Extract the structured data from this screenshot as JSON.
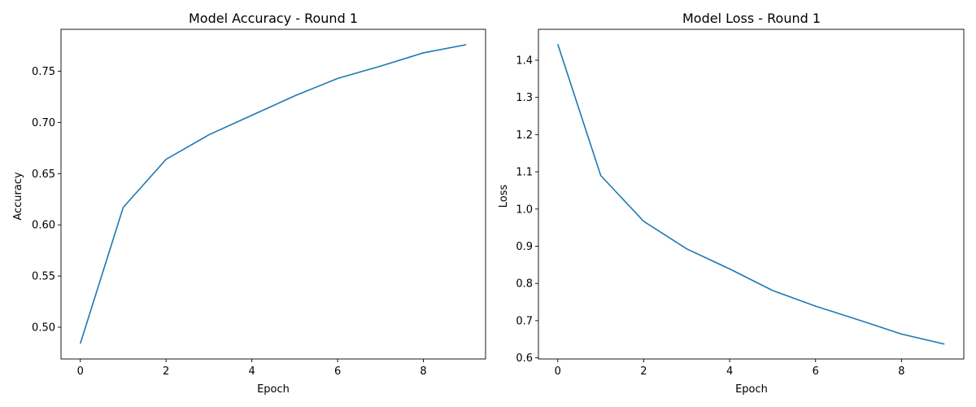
{
  "chart_data": [
    {
      "type": "line",
      "title": "Model Accuracy - Round 1",
      "xlabel": "Epoch",
      "ylabel": "Accuracy",
      "x": [
        0,
        1,
        2,
        3,
        4,
        5,
        6,
        7,
        8,
        9
      ],
      "series": [
        {
          "values": [
            0.484,
            0.617,
            0.664,
            0.688,
            0.707,
            0.726,
            0.743,
            0.755,
            0.768,
            0.776
          ]
        }
      ],
      "xlim": [
        -0.45,
        9.45
      ],
      "ylim": [
        0.469,
        0.791
      ],
      "xticks": [
        0,
        2,
        4,
        6,
        8
      ],
      "yticks": [
        0.5,
        0.55,
        0.6,
        0.65,
        0.7,
        0.75
      ],
      "ytick_labels": [
        "0.50",
        "0.55",
        "0.60",
        "0.65",
        "0.70",
        "0.75"
      ],
      "grid": false,
      "line_color": "#1f77b4"
    },
    {
      "type": "line",
      "title": "Model Loss - Round 1",
      "xlabel": "Epoch",
      "ylabel": "Loss",
      "x": [
        0,
        1,
        2,
        3,
        4,
        5,
        6,
        7,
        8,
        9
      ],
      "series": [
        {
          "values": [
            1.443,
            1.09,
            0.967,
            0.893,
            0.839,
            0.781,
            0.739,
            0.702,
            0.664,
            0.637
          ]
        }
      ],
      "xlim": [
        -0.45,
        9.45
      ],
      "ylim": [
        0.597,
        1.483
      ],
      "xticks": [
        0,
        2,
        4,
        6,
        8
      ],
      "yticks": [
        0.6,
        0.7,
        0.8,
        0.9,
        1.0,
        1.1,
        1.2,
        1.3,
        1.4
      ],
      "ytick_labels": [
        "0.6",
        "0.7",
        "0.8",
        "0.9",
        "1.0",
        "1.1",
        "1.2",
        "1.3",
        "1.4"
      ],
      "grid": false,
      "line_color": "#1f77b4"
    }
  ]
}
